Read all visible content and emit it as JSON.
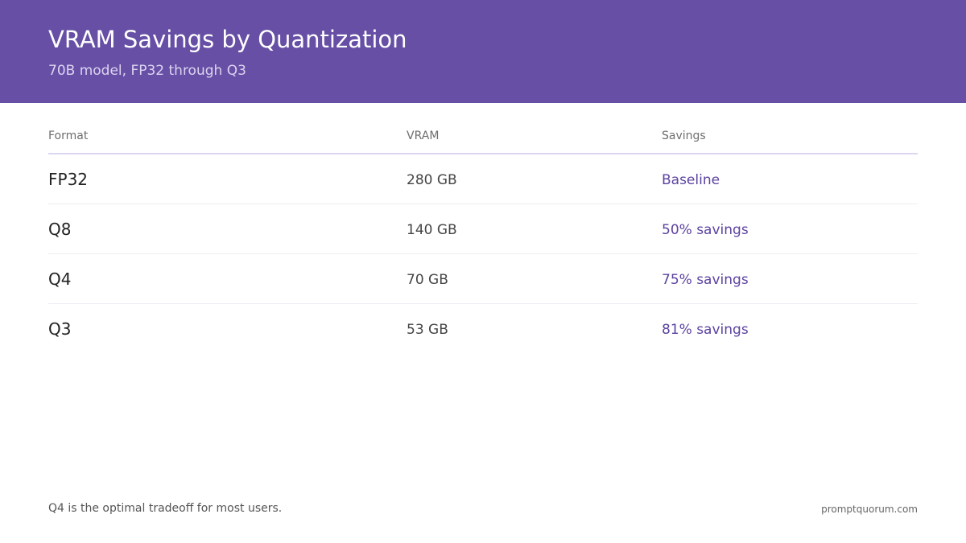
{
  "header": {
    "title": "VRAM Savings by Quantization",
    "subtitle": "70B model, FP32 through Q3"
  },
  "colors": {
    "header_bg": "#664fa5",
    "accent": "#5c43a0"
  },
  "table": {
    "columns": [
      "Format",
      "VRAM",
      "Savings"
    ],
    "rows": [
      {
        "format": "FP32",
        "vram": "280 GB",
        "savings": "Baseline"
      },
      {
        "format": "Q8",
        "vram": "140 GB",
        "savings": "50% savings"
      },
      {
        "format": "Q4",
        "vram": "70 GB",
        "savings": "75% savings"
      },
      {
        "format": "Q3",
        "vram": "53 GB",
        "savings": "81% savings"
      }
    ]
  },
  "chart_data": {
    "type": "table",
    "title": "VRAM Savings by Quantization",
    "subtitle": "70B model, FP32 through Q3",
    "columns": [
      "Format",
      "VRAM",
      "Savings"
    ],
    "rows": [
      [
        "FP32",
        "280 GB",
        "Baseline"
      ],
      [
        "Q8",
        "140 GB",
        "50% savings"
      ],
      [
        "Q4",
        "70 GB",
        "75% savings"
      ],
      [
        "Q3",
        "53 GB",
        "81% savings"
      ]
    ],
    "categories": [
      "FP32",
      "Q8",
      "Q4",
      "Q3"
    ],
    "vram_gb": [
      280,
      140,
      70,
      53
    ],
    "savings_percent": [
      0,
      50,
      75,
      81
    ]
  },
  "footer": {
    "note": "Q4 is the optimal tradeoff for most users.",
    "brand": "promptquorum.com"
  }
}
